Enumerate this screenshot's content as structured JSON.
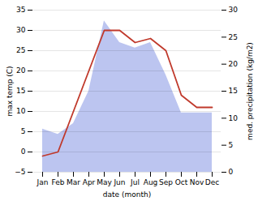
{
  "chart_data": {
    "type": "line",
    "xlabel": "date (month)",
    "ylabel": "max temp (C)",
    "y2label": "med. precipitation (kg/m2)",
    "categories": [
      "Jan",
      "Feb",
      "Mar",
      "Apr",
      "May",
      "Jun",
      "Jul",
      "Aug",
      "Sep",
      "Oct",
      "Nov",
      "Dec"
    ],
    "series": [
      {
        "type": "area",
        "axis": "y2",
        "color": "#bcc5f0",
        "values": [
          8,
          7,
          9,
          15,
          28,
          24,
          23,
          24,
          18,
          11,
          11,
          11
        ]
      },
      {
        "type": "line",
        "color": "#c0392b",
        "values": [
          -1,
          0,
          10,
          20,
          30,
          30,
          27,
          28,
          25,
          14,
          11,
          11
        ]
      }
    ],
    "ylim": [
      -5,
      35
    ],
    "yticks": [
      -5,
      0,
      5,
      10,
      15,
      20,
      25,
      30,
      35
    ],
    "y2lim": [
      0,
      30
    ],
    "y2ticks": [
      0,
      5,
      10,
      15,
      20,
      25,
      30
    ],
    "grid": true
  }
}
